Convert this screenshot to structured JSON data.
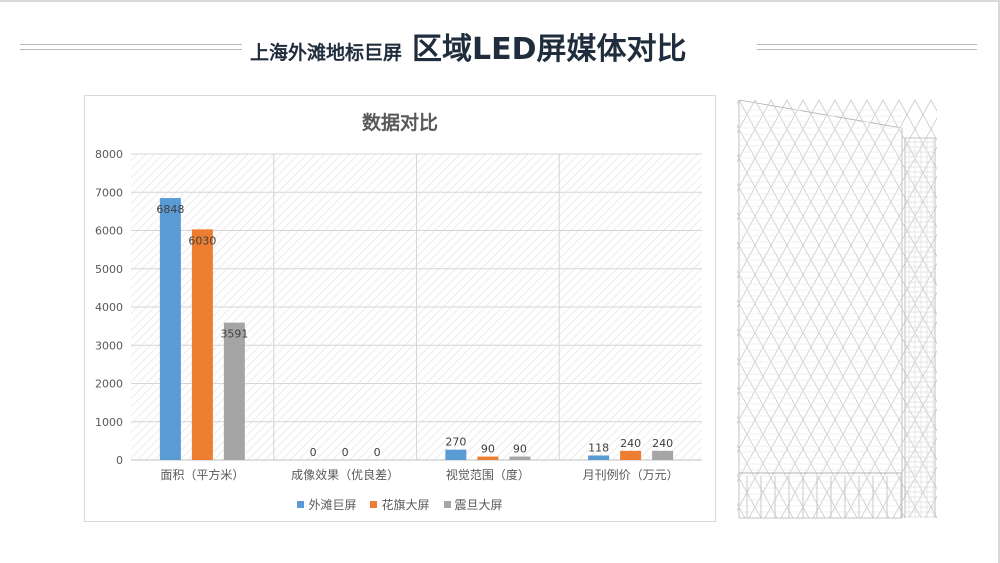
{
  "slide": {
    "title_small": "上海外滩地标巨屏",
    "title_big": "区域LED屏媒体对比"
  },
  "colors": {
    "title_text": "#1f2d3d",
    "series_1": "#5b9bd5",
    "series_2": "#ed7d31",
    "series_3": "#a5a5a5"
  },
  "chart_data": {
    "type": "bar",
    "title": "数据对比",
    "xlabel": "",
    "ylabel": "",
    "ylim": [
      0,
      8000
    ],
    "yticks": [
      "0",
      "1000",
      "2000",
      "3000",
      "4000",
      "5000",
      "6000",
      "7000",
      "8000"
    ],
    "grid": true,
    "legend_position": "bottom",
    "categories": [
      "面积（平方米）",
      "成像效果（优良差）",
      "视觉范围（度）",
      "月刊例价（万元）"
    ],
    "series": [
      {
        "name": "外滩巨屏",
        "color": "#5b9bd5",
        "values": [
          6848,
          0,
          270,
          118
        ]
      },
      {
        "name": "花旗大屏",
        "color": "#ed7d31",
        "values": [
          6030,
          0,
          90,
          240
        ]
      },
      {
        "name": "震旦大屏",
        "color": "#a5a5a5",
        "values": [
          3591,
          0,
          90,
          240
        ]
      }
    ]
  }
}
